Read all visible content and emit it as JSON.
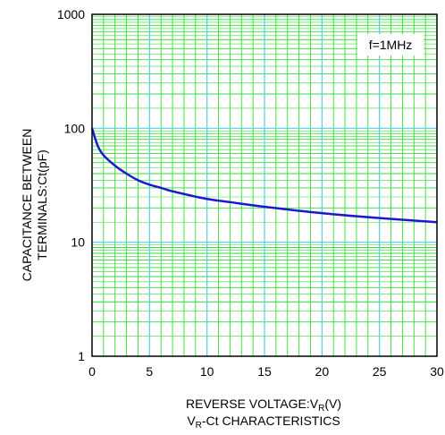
{
  "chart_data": {
    "type": "line",
    "title": "VR-Ct CHARACTERISTICS",
    "title_parts": {
      "v": "V",
      "r": "R",
      "rest": "-Ct CHARACTERISTICS"
    },
    "xlabel": "REVERSE VOLTAGE:VR(V)",
    "xlabel_parts": {
      "pre": "REVERSE VOLTAGE:V",
      "sub": "R",
      "post": "(V)"
    },
    "ylabel": "CAPACITANCE BETWEEN TERMINALS:Ct(pF)",
    "ylabel_lines": [
      "CAPACITANCE BETWEEN",
      "TERMINALS:Ct(pF)"
    ],
    "annotation": "f=1MHz",
    "x_ticks": [
      "0",
      "5",
      "10",
      "15",
      "20",
      "25",
      "30"
    ],
    "y_ticks": [
      "1",
      "10",
      "100",
      "1000"
    ],
    "xlim": [
      0,
      30
    ],
    "ylim": [
      1,
      1000
    ],
    "y_scale": "log",
    "grid": true,
    "colors": {
      "minor_grid": "#33dd33",
      "major_grid": "#55ccee",
      "curve": "#1a1acc",
      "frame": "#000000"
    },
    "series": [
      {
        "x": [
          0,
          0.5,
          1,
          2,
          3,
          4,
          5,
          6,
          7,
          8,
          10,
          12,
          15,
          20,
          25,
          30
        ],
        "values": [
          100,
          70,
          58,
          47,
          40,
          35,
          32,
          30,
          28,
          26.5,
          24,
          22.5,
          20.5,
          18,
          16.3,
          15
        ]
      }
    ]
  }
}
